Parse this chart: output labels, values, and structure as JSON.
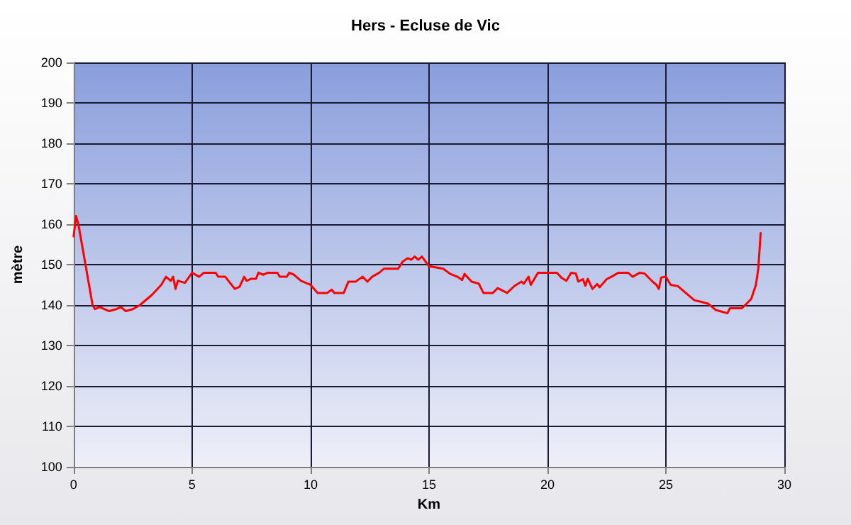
{
  "chart_data": {
    "type": "line",
    "title": "Hers - Ecluse de Vic",
    "xlabel": "Km",
    "ylabel": "mètre",
    "x": [
      0,
      0.1,
      0.2,
      0.5,
      0.8,
      0.9,
      1.1,
      1.5,
      1.8,
      2.0,
      2.2,
      2.5,
      2.8,
      3.3,
      3.7,
      3.9,
      4.1,
      4.2,
      4.3,
      4.4,
      4.7,
      5.0,
      5.3,
      5.5,
      6.0,
      6.1,
      6.4,
      6.8,
      7.0,
      7.2,
      7.3,
      7.5,
      7.7,
      7.8,
      8.0,
      8.2,
      8.6,
      8.7,
      9.0,
      9.1,
      9.3,
      9.4,
      9.6,
      9.8,
      10.0,
      10.3,
      10.7,
      10.9,
      11.0,
      11.4,
      11.6,
      11.9,
      12.2,
      12.4,
      12.6,
      12.9,
      13.1,
      13.7,
      13.9,
      14.1,
      14.25,
      14.4,
      14.55,
      14.7,
      14.8,
      15.0,
      15.6,
      15.9,
      16.2,
      16.4,
      16.5,
      16.8,
      17.1,
      17.3,
      17.7,
      17.9,
      18.3,
      18.6,
      18.9,
      19.0,
      19.2,
      19.3,
      19.6,
      20.0,
      20.4,
      20.6,
      20.8,
      21.0,
      21.2,
      21.3,
      21.5,
      21.6,
      21.7,
      21.9,
      22.1,
      22.2,
      22.5,
      22.7,
      23.0,
      23.4,
      23.6,
      23.9,
      24.1,
      24.4,
      24.6,
      24.7,
      24.8,
      25.0,
      25.2,
      25.5,
      25.9,
      26.2,
      26.5,
      26.8,
      27.1,
      27.4,
      27.6,
      27.7,
      28.2,
      28.4,
      28.6,
      28.8,
      28.9,
      29.0
    ],
    "series": [
      {
        "color": "#ff0000",
        "values": [
          157,
          162,
          160,
          150,
          140,
          139,
          139.5,
          138.5,
          139,
          139.5,
          138.5,
          139,
          140,
          142.5,
          145,
          147,
          146,
          147,
          144,
          146,
          145.5,
          148,
          147,
          148,
          148,
          147,
          147,
          144,
          144.5,
          147,
          146,
          146.5,
          146.5,
          148,
          147.5,
          148,
          148,
          147,
          147,
          148,
          147.5,
          147,
          146,
          145.5,
          145,
          143,
          143,
          143.8,
          143,
          143,
          145.8,
          145.8,
          147,
          145.8,
          147,
          148,
          149,
          149,
          150.8,
          151.6,
          151.2,
          152,
          151.2,
          152,
          151.2,
          149.6,
          149,
          147.7,
          147,
          146.2,
          147.7,
          145.8,
          145.3,
          143,
          143,
          144.2,
          143,
          144.7,
          145.8,
          145.3,
          147,
          145,
          148,
          148,
          148,
          146.7,
          146,
          148,
          147.8,
          145.8,
          146.4,
          144.8,
          146.5,
          144,
          145.2,
          144.4,
          146.4,
          147,
          148,
          148,
          147,
          148,
          147.8,
          146,
          145,
          144,
          146.8,
          147,
          145,
          144.7,
          142.7,
          141.2,
          140.8,
          140.3,
          138.8,
          138.3,
          138,
          139.2,
          139.2,
          140.3,
          141.5,
          145,
          149,
          157.8
        ]
      }
    ],
    "xlim": [
      0,
      30
    ],
    "xticks": [
      0,
      5,
      10,
      15,
      20,
      25,
      30
    ],
    "ylim": [
      100,
      200
    ],
    "yticks": [
      100,
      110,
      120,
      130,
      140,
      150,
      160,
      170,
      180,
      190,
      200
    ],
    "grid": true,
    "marker": "none",
    "line_style": "solid"
  }
}
